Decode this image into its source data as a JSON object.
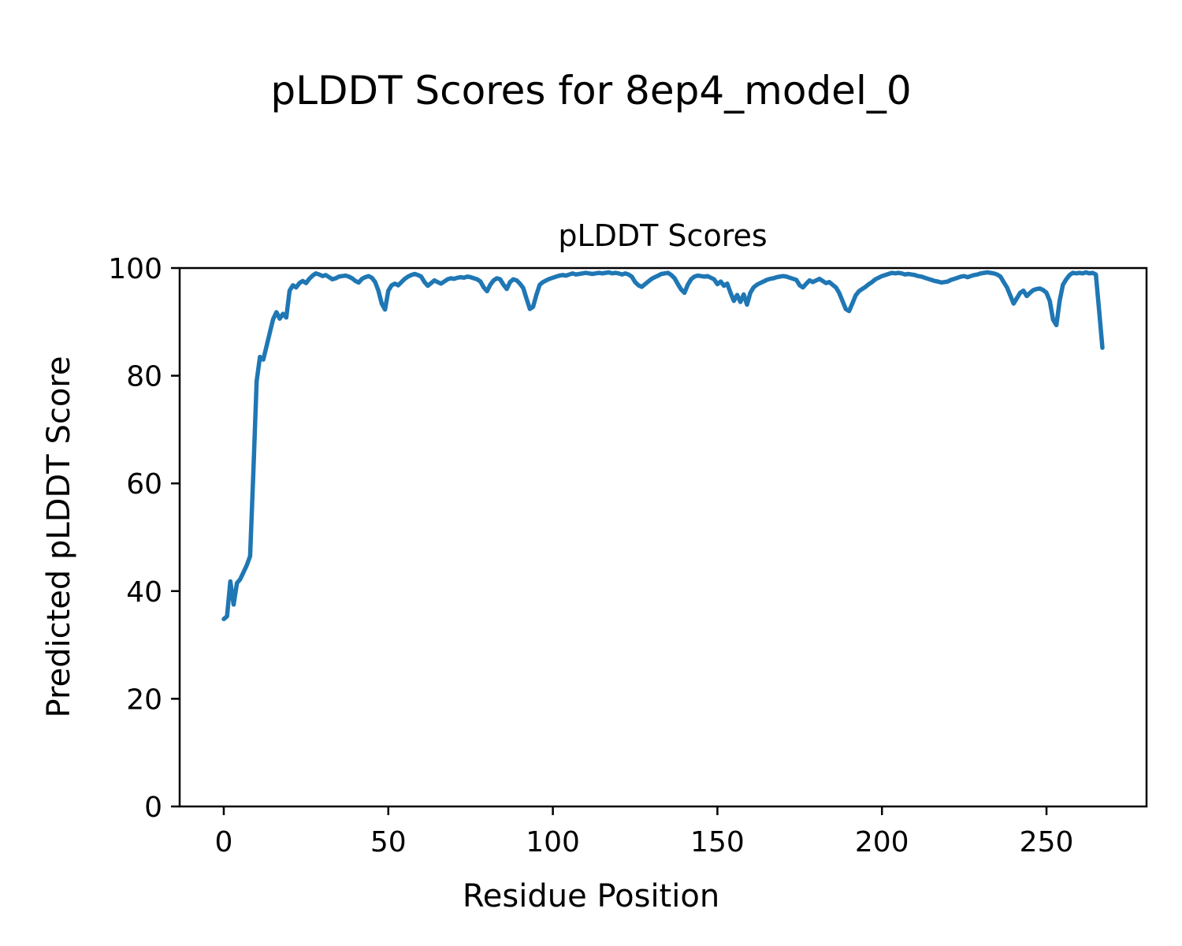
{
  "chart_data": {
    "type": "line",
    "suptitle": "pLDDT Scores for 8ep4_model_0",
    "title": "pLDDT Scores",
    "xlabel": "Residue Position",
    "ylabel": "Predicted pLDDT Score",
    "xlim": [
      -13.4,
      280.4
    ],
    "ylim": [
      0,
      100
    ],
    "xticks": [
      0,
      50,
      100,
      150,
      200,
      250
    ],
    "yticks": [
      0,
      20,
      40,
      60,
      80,
      100
    ],
    "grid": false,
    "line_color": "#1f77b4",
    "series": [
      {
        "name": "pLDDT",
        "points": [
          [
            0,
            34.8
          ],
          [
            1,
            35.3
          ],
          [
            2,
            41.8
          ],
          [
            3,
            37.5
          ],
          [
            4,
            41.5
          ],
          [
            5,
            42.2
          ],
          [
            6,
            43.5
          ],
          [
            7,
            44.8
          ],
          [
            8,
            46.5
          ],
          [
            9,
            62
          ],
          [
            10,
            79
          ],
          [
            11,
            83.5
          ],
          [
            12,
            83
          ],
          [
            13,
            85.5
          ],
          [
            14,
            88
          ],
          [
            15,
            90.5
          ],
          [
            16,
            91.8
          ],
          [
            17,
            90.6
          ],
          [
            18,
            91.5
          ],
          [
            19,
            90.8
          ],
          [
            20,
            95.8
          ],
          [
            21,
            96.8
          ],
          [
            22,
            96.4
          ],
          [
            23,
            97.2
          ],
          [
            24,
            97.6
          ],
          [
            25,
            97.2
          ],
          [
            26,
            98
          ],
          [
            27,
            98.6
          ],
          [
            28,
            99
          ],
          [
            29,
            98.8
          ],
          [
            30,
            98.5
          ],
          [
            31,
            98.7
          ],
          [
            32,
            98.3
          ],
          [
            33,
            97.9
          ],
          [
            34,
            98.1
          ],
          [
            35,
            98.4
          ],
          [
            36,
            98.5
          ],
          [
            37,
            98.6
          ],
          [
            38,
            98.4
          ],
          [
            39,
            98.1
          ],
          [
            40,
            97.6
          ],
          [
            41,
            97.3
          ],
          [
            42,
            98
          ],
          [
            43,
            98.3
          ],
          [
            44,
            98.5
          ],
          [
            45,
            98.2
          ],
          [
            46,
            97.4
          ],
          [
            47,
            95.8
          ],
          [
            48,
            93.4
          ],
          [
            49,
            92.3
          ],
          [
            50,
            95.8
          ],
          [
            51,
            96.8
          ],
          [
            52,
            97.1
          ],
          [
            53,
            96.8
          ],
          [
            54,
            97.4
          ],
          [
            55,
            98
          ],
          [
            56,
            98.4
          ],
          [
            57,
            98.7
          ],
          [
            58,
            98.9
          ],
          [
            59,
            98.7
          ],
          [
            60,
            98.4
          ],
          [
            61,
            97.4
          ],
          [
            62,
            96.7
          ],
          [
            63,
            97.2
          ],
          [
            64,
            97.7
          ],
          [
            65,
            97.4
          ],
          [
            66,
            97.1
          ],
          [
            67,
            97.5
          ],
          [
            68,
            97.9
          ],
          [
            69,
            98.1
          ],
          [
            70,
            98
          ],
          [
            71,
            98.2
          ],
          [
            72,
            98.3
          ],
          [
            73,
            98.2
          ],
          [
            74,
            98.4
          ],
          [
            75,
            98.3
          ],
          [
            76,
            98.1
          ],
          [
            77,
            97.9
          ],
          [
            78,
            97.5
          ],
          [
            79,
            96.4
          ],
          [
            80,
            95.7
          ],
          [
            81,
            96.9
          ],
          [
            82,
            97.7
          ],
          [
            83,
            98.1
          ],
          [
            84,
            97.9
          ],
          [
            85,
            96.9
          ],
          [
            86,
            96.1
          ],
          [
            87,
            97.4
          ],
          [
            88,
            97.9
          ],
          [
            89,
            97.7
          ],
          [
            90,
            97.1
          ],
          [
            91,
            96.3
          ],
          [
            92,
            94.3
          ],
          [
            93,
            92.4
          ],
          [
            94,
            92.8
          ],
          [
            95,
            95
          ],
          [
            96,
            96.9
          ],
          [
            97,
            97.4
          ],
          [
            98,
            97.7
          ],
          [
            99,
            98
          ],
          [
            100,
            98.2
          ],
          [
            101,
            98.4
          ],
          [
            102,
            98.6
          ],
          [
            103,
            98.7
          ],
          [
            104,
            98.6
          ],
          [
            105,
            98.8
          ],
          [
            106,
            99
          ],
          [
            107,
            98.8
          ],
          [
            108,
            98.9
          ],
          [
            109,
            99
          ],
          [
            110,
            99.1
          ],
          [
            111,
            99
          ],
          [
            112,
            98.9
          ],
          [
            113,
            99
          ],
          [
            114,
            99.1
          ],
          [
            115,
            99
          ],
          [
            116,
            99.1
          ],
          [
            117,
            99.2
          ],
          [
            118,
            99
          ],
          [
            119,
            99.1
          ],
          [
            120,
            99
          ],
          [
            121,
            98.8
          ],
          [
            122,
            99
          ],
          [
            123,
            98.8
          ],
          [
            124,
            98.4
          ],
          [
            125,
            97.4
          ],
          [
            126,
            96.8
          ],
          [
            127,
            96.5
          ],
          [
            128,
            97
          ],
          [
            129,
            97.5
          ],
          [
            130,
            98
          ],
          [
            131,
            98.3
          ],
          [
            132,
            98.6
          ],
          [
            133,
            98.9
          ],
          [
            134,
            99
          ],
          [
            135,
            99.1
          ],
          [
            136,
            98.7
          ],
          [
            137,
            98.1
          ],
          [
            138,
            97
          ],
          [
            139,
            96
          ],
          [
            140,
            95.4
          ],
          [
            141,
            96.9
          ],
          [
            142,
            97.9
          ],
          [
            143,
            98.4
          ],
          [
            144,
            98.6
          ],
          [
            145,
            98.5
          ],
          [
            146,
            98.4
          ],
          [
            147,
            98.5
          ],
          [
            148,
            98.2
          ],
          [
            149,
            97.9
          ],
          [
            150,
            97
          ],
          [
            151,
            97.5
          ],
          [
            152,
            96.7
          ],
          [
            153,
            97.1
          ],
          [
            154,
            95.4
          ],
          [
            155,
            93.9
          ],
          [
            156,
            95
          ],
          [
            157,
            93.7
          ],
          [
            158,
            95.1
          ],
          [
            159,
            93.2
          ],
          [
            160,
            95.4
          ],
          [
            161,
            96.4
          ],
          [
            162,
            96.9
          ],
          [
            163,
            97.2
          ],
          [
            164,
            97.5
          ],
          [
            165,
            97.8
          ],
          [
            166,
            98
          ],
          [
            167,
            98.1
          ],
          [
            168,
            98.3
          ],
          [
            169,
            98.4
          ],
          [
            170,
            98.5
          ],
          [
            171,
            98.4
          ],
          [
            172,
            98.2
          ],
          [
            173,
            98
          ],
          [
            174,
            97.8
          ],
          [
            175,
            96.8
          ],
          [
            176,
            96.4
          ],
          [
            177,
            97.1
          ],
          [
            178,
            97.7
          ],
          [
            179,
            97.4
          ],
          [
            180,
            97.7
          ],
          [
            181,
            98
          ],
          [
            182,
            97.6
          ],
          [
            183,
            97.2
          ],
          [
            184,
            97.4
          ],
          [
            185,
            96.9
          ],
          [
            186,
            96.4
          ],
          [
            187,
            95.4
          ],
          [
            188,
            93.9
          ],
          [
            189,
            92.4
          ],
          [
            190,
            92
          ],
          [
            191,
            93.4
          ],
          [
            192,
            94.9
          ],
          [
            193,
            95.7
          ],
          [
            194,
            96.1
          ],
          [
            195,
            96.5
          ],
          [
            196,
            97
          ],
          [
            197,
            97.4
          ],
          [
            198,
            97.9
          ],
          [
            199,
            98.2
          ],
          [
            200,
            98.5
          ],
          [
            201,
            98.7
          ],
          [
            202,
            98.9
          ],
          [
            203,
            99.1
          ],
          [
            204,
            99
          ],
          [
            205,
            99.1
          ],
          [
            206,
            99
          ],
          [
            207,
            98.8
          ],
          [
            208,
            98.9
          ],
          [
            209,
            98.8
          ],
          [
            210,
            98.7
          ],
          [
            211,
            98.5
          ],
          [
            212,
            98.4
          ],
          [
            213,
            98.2
          ],
          [
            214,
            98
          ],
          [
            215,
            97.8
          ],
          [
            216,
            97.6
          ],
          [
            217,
            97.5
          ],
          [
            218,
            97.3
          ],
          [
            219,
            97.4
          ],
          [
            220,
            97.5
          ],
          [
            221,
            97.8
          ],
          [
            222,
            98
          ],
          [
            223,
            98.2
          ],
          [
            224,
            98.4
          ],
          [
            225,
            98.5
          ],
          [
            226,
            98.3
          ],
          [
            227,
            98.5
          ],
          [
            228,
            98.7
          ],
          [
            229,
            98.8
          ],
          [
            230,
            99
          ],
          [
            231,
            99.1
          ],
          [
            232,
            99.2
          ],
          [
            233,
            99.1
          ],
          [
            234,
            99
          ],
          [
            235,
            98.8
          ],
          [
            236,
            98.4
          ],
          [
            237,
            97.4
          ],
          [
            238,
            96.4
          ],
          [
            239,
            94.9
          ],
          [
            240,
            93.4
          ],
          [
            241,
            94.4
          ],
          [
            242,
            95.4
          ],
          [
            243,
            95.8
          ],
          [
            244,
            94.8
          ],
          [
            245,
            95.4
          ],
          [
            246,
            95.9
          ],
          [
            247,
            96.1
          ],
          [
            248,
            96.2
          ],
          [
            249,
            95.9
          ],
          [
            250,
            95.4
          ],
          [
            251,
            93.9
          ],
          [
            252,
            90.4
          ],
          [
            253,
            89.4
          ],
          [
            254,
            93.9
          ],
          [
            255,
            96.9
          ],
          [
            256,
            97.9
          ],
          [
            257,
            98.7
          ],
          [
            258,
            99.1
          ],
          [
            259,
            99
          ],
          [
            260,
            99.1
          ],
          [
            261,
            99
          ],
          [
            262,
            99.2
          ],
          [
            263,
            99
          ],
          [
            264,
            99.1
          ],
          [
            265,
            98.8
          ],
          [
            266,
            92
          ],
          [
            267,
            85.2
          ]
        ]
      }
    ]
  }
}
